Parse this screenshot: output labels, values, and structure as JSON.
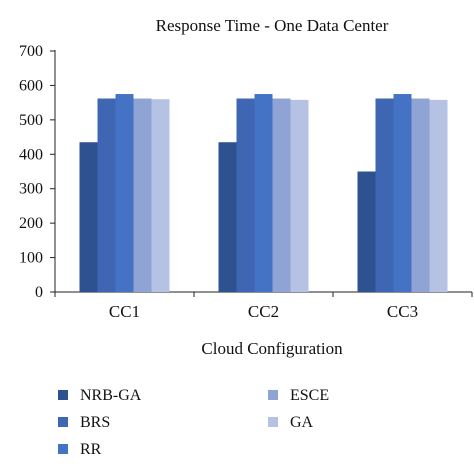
{
  "chart_data": {
    "type": "bar",
    "title": "Response Time - One Data Center",
    "xlabel": "Cloud Configuration",
    "ylabel": "",
    "ylim": [
      0,
      700
    ],
    "yticks": [
      0,
      100,
      200,
      300,
      400,
      500,
      600,
      700
    ],
    "grid": false,
    "legend_position": "bottom",
    "categories": [
      "CC1",
      "CC2",
      "CC3"
    ],
    "series": [
      {
        "name": "NRB-GA",
        "color": "#2e5290",
        "values": [
          435,
          435,
          350
        ]
      },
      {
        "name": "BRS",
        "color": "#3f66b2",
        "values": [
          562,
          562,
          562
        ]
      },
      {
        "name": "RR",
        "color": "#4472c4",
        "values": [
          575,
          575,
          575
        ]
      },
      {
        "name": "ESCE",
        "color": "#8fa3d5",
        "values": [
          562,
          562,
          562
        ]
      },
      {
        "name": "GA",
        "color": "#b6c2e3",
        "values": [
          560,
          558,
          558
        ]
      }
    ]
  }
}
